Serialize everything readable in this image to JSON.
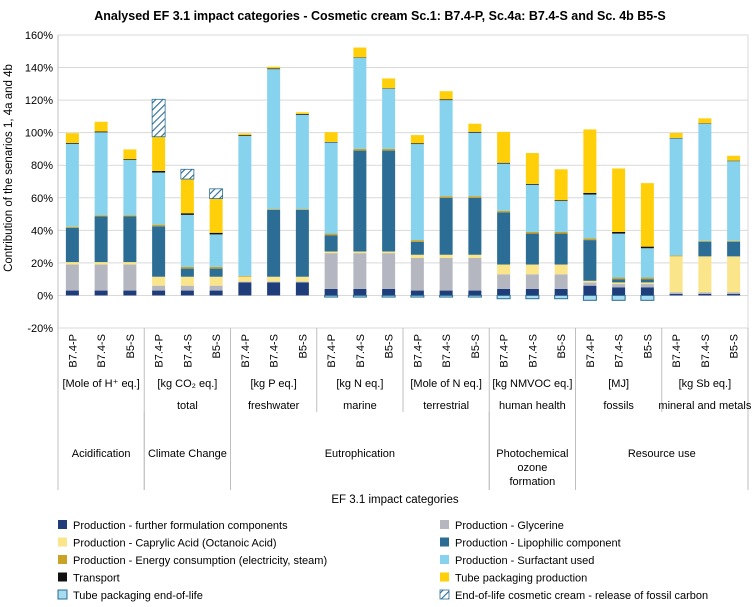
{
  "chart_data": {
    "type": "bar",
    "stacked": true,
    "title": "Analysed EF 3.1 impact categories - Cosmetic cream Sc.1: B7.4-P, Sc.4a: B7.4-S and Sc. 4b B5-S",
    "xlabel": "EF 3.1 impact categories",
    "ylabel": "Contribution of the senarios 1, 4a and 4b",
    "ylim": [
      -20,
      160
    ],
    "yticks": [
      "-20%",
      "0%",
      "20%",
      "40%",
      "60%",
      "80%",
      "100%",
      "120%",
      "140%",
      "160%"
    ],
    "ytick_values": [
      -20,
      0,
      20,
      40,
      60,
      80,
      100,
      120,
      140,
      160
    ],
    "grid": true,
    "scenarios": [
      "B7.4-P",
      "B7.4-S",
      "B5-S"
    ],
    "groups": [
      {
        "unit": "[Mole of H⁺ eq.]",
        "sub": "",
        "main": "Acidification"
      },
      {
        "unit": "[kg CO₂ eq.]",
        "sub": "total",
        "main": "Climate Change"
      },
      {
        "unit": "[kg P eq.]",
        "sub": "freshwater",
        "main": "Eutrophication"
      },
      {
        "unit": "[kg N eq.]",
        "sub": "marine",
        "main": "Eutrophication"
      },
      {
        "unit": "[Mole of N eq.]",
        "sub": "terrestrial",
        "main": "Eutrophication"
      },
      {
        "unit": "[kg NMVOC eq.]",
        "sub": "human health",
        "main": "Photochemical ozone formation"
      },
      {
        "unit": "[MJ]",
        "sub": "fossils",
        "main": "Resource use"
      },
      {
        "unit": "[kg Sb eq.]",
        "sub": "mineral and metals",
        "main": "Resource use"
      }
    ],
    "main_categories": [
      {
        "label": "Acidification",
        "lines": [
          "Acidification"
        ]
      },
      {
        "label": "Climate Change",
        "lines": [
          "Climate Change"
        ]
      },
      {
        "label": "Eutrophication",
        "lines": [
          "Eutrophication"
        ]
      },
      {
        "label": "Photochemical ozone formation",
        "lines": [
          "Photochemical",
          "ozone",
          "formation"
        ]
      },
      {
        "label": "Resource use",
        "lines": [
          "Resource use"
        ]
      }
    ],
    "series": [
      {
        "name": "Production - further formulation components",
        "color": "#1f3d7a",
        "pattern": "solid",
        "values": [
          3,
          3,
          3,
          3,
          3,
          3,
          8,
          8,
          8,
          4,
          4,
          4,
          3,
          3,
          3,
          4,
          4,
          4,
          6,
          5,
          5,
          1,
          1,
          1
        ]
      },
      {
        "name": "Production - Glycerine",
        "color": "#b4b7bf",
        "pattern": "solid",
        "values": [
          16,
          16,
          16,
          3,
          3,
          3,
          0.5,
          0.5,
          0.5,
          22,
          22,
          22,
          20,
          20,
          20,
          9,
          9,
          9,
          2,
          2,
          2,
          1,
          1,
          1
        ]
      },
      {
        "name": "Production - Caprylic Acid (Octanoic Acid)",
        "color": "#fbe58a",
        "pattern": "solid",
        "values": [
          1.5,
          1.5,
          1.5,
          5.5,
          5.5,
          5.5,
          3,
          3,
          3,
          1,
          1,
          1,
          2,
          2,
          2,
          6,
          6,
          6,
          1,
          1,
          1,
          22,
          22,
          22
        ]
      },
      {
        "name": "Production - Lipophilic component",
        "color": "#2b6d95",
        "pattern": "solid",
        "values": [
          21,
          28,
          28,
          31,
          5,
          5,
          0,
          41,
          41,
          10,
          62,
          62,
          8,
          35,
          35,
          32,
          19,
          19,
          25,
          2,
          2,
          0,
          9,
          9
        ]
      },
      {
        "name": "Production - Energy consumption (electricity, steam)",
        "color": "#c9a227",
        "pattern": "solid",
        "values": [
          0.7,
          0.7,
          0.7,
          1,
          1,
          1,
          0.5,
          0.5,
          0.5,
          1,
          1,
          1,
          1,
          1,
          1,
          1,
          1,
          1,
          1,
          1,
          1,
          0.5,
          0.5,
          0.5
        ]
      },
      {
        "name": "Production - Surfactant used",
        "color": "#87d3ee",
        "pattern": "solid",
        "values": [
          51,
          51,
          34,
          32,
          32,
          20,
          86,
          86,
          58,
          56,
          56,
          37,
          59,
          59,
          39,
          29,
          29,
          19,
          27,
          27,
          18,
          72,
          72,
          49
        ]
      },
      {
        "name": "Transport",
        "color": "#111111",
        "pattern": "solid",
        "values": [
          0.5,
          0.5,
          0.5,
          1,
          1,
          1,
          0.5,
          0.5,
          0.5,
          0.3,
          0.3,
          0.3,
          0.5,
          0.5,
          0.5,
          0.5,
          0.5,
          0.5,
          1,
          1,
          1,
          0.3,
          0.3,
          0.3
        ]
      },
      {
        "name": "Tube packaging production",
        "color": "#ffd00a",
        "pattern": "solid",
        "values": [
          6,
          6,
          6,
          21,
          21,
          21,
          1,
          1,
          1,
          6,
          6,
          6,
          5,
          5,
          5,
          19,
          19,
          19,
          39,
          39,
          39,
          3,
          3,
          3
        ]
      },
      {
        "name": "Tube packaging end-of-life",
        "color": "#a6dbf0",
        "pattern": "outline",
        "values": [
          0,
          0,
          0,
          0,
          0,
          0,
          0,
          0,
          0,
          -1,
          -1,
          -1,
          -1,
          -1,
          -1,
          -2,
          -2,
          -2,
          -3,
          -3,
          -3,
          0,
          0,
          0
        ]
      },
      {
        "name": "End-of-life cosmetic cream - release of fossil carbon",
        "color": "#2b6d95",
        "pattern": "hatch",
        "values": [
          0,
          0,
          0,
          23,
          6,
          6,
          0,
          0,
          0,
          0,
          0,
          0,
          0,
          0,
          0,
          0,
          0,
          0,
          0,
          0,
          0,
          0,
          0,
          0
        ]
      }
    ]
  }
}
